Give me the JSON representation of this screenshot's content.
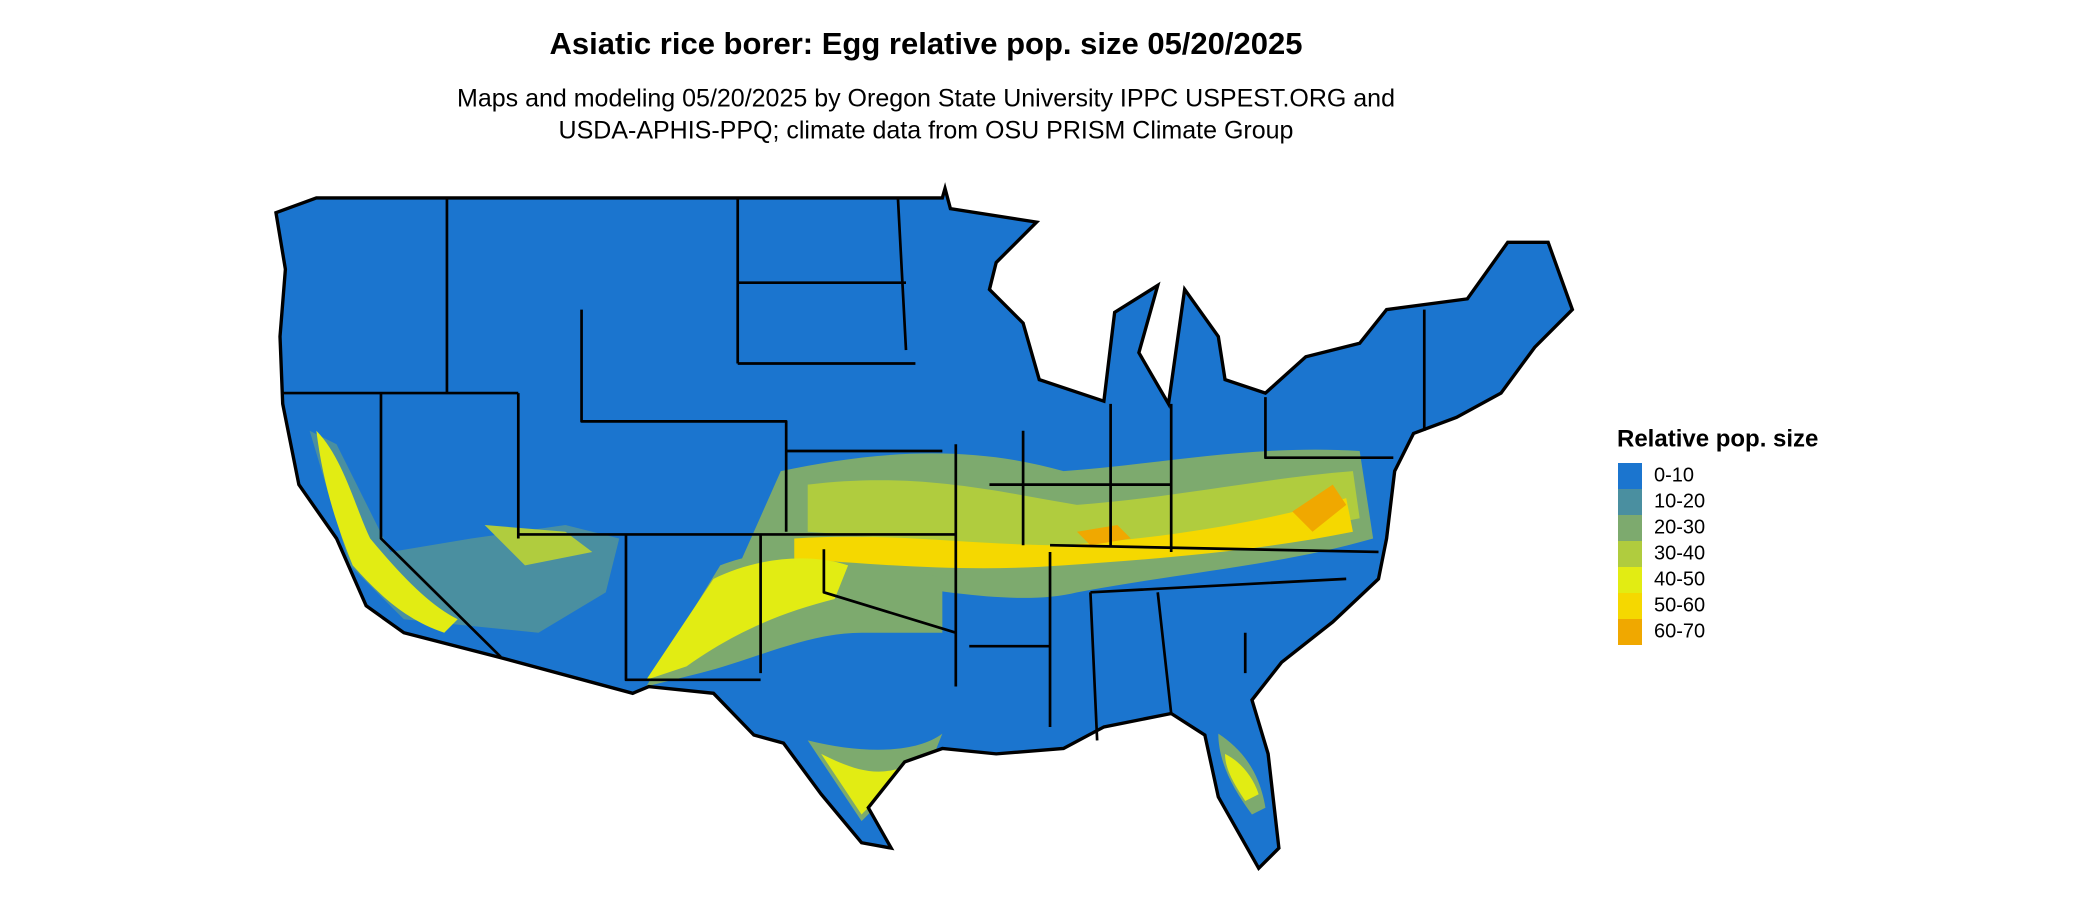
{
  "title": "Asiatic rice borer: Egg relative pop. size 05/20/2025",
  "subtitle": [
    "Maps and modeling 05/20/2025 by Oregon State University IPPC USPEST.ORG and",
    "USDA-APHIS-PPQ; climate data from OSU PRISM Climate Group"
  ],
  "legend": {
    "title": "Relative pop. size",
    "items": [
      {
        "label": "0-10",
        "color": "#1b75cf"
      },
      {
        "label": "10-20",
        "color": "#4a8fa0"
      },
      {
        "label": "20-30",
        "color": "#7daa6e"
      },
      {
        "label": "30-40",
        "color": "#b0cc3e"
      },
      {
        "label": "40-50",
        "color": "#e2ec13"
      },
      {
        "label": "50-60",
        "color": "#f5d800"
      },
      {
        "label": "60-70",
        "color": "#f0a800"
      }
    ]
  }
}
